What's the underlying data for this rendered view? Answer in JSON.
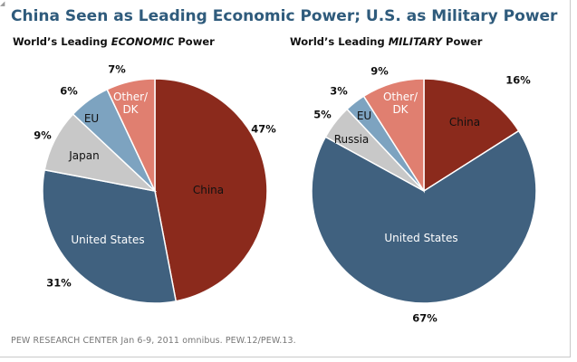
{
  "title": "China Seen as Leading Economic Power; U.S. as Military Power",
  "source": "PEW RESEARCH CENTER Jan 6-9, 2011 omnibus. PEW.12/PEW.13.",
  "chart_data": [
    {
      "type": "pie",
      "title_prefix": "World’s Leading ",
      "title_emph": "ECONOMIC",
      "title_suffix": " Power",
      "slices": [
        {
          "label": "China",
          "value": 47,
          "value_label": "47%",
          "color": "#8b2a1c",
          "label_color": "#111111"
        },
        {
          "label": "United States",
          "value": 31,
          "value_label": "31%",
          "color": "#40617f",
          "label_color": "#ffffff"
        },
        {
          "label": "Japan",
          "value": 9,
          "value_label": "9%",
          "color": "#c8c8c8",
          "label_color": "#111111"
        },
        {
          "label": "EU",
          "value": 6,
          "value_label": "6%",
          "color": "#7da3c0",
          "label_color": "#111111"
        },
        {
          "label": "Other/ DK",
          "value": 7,
          "value_label": "7%",
          "color": "#e07f70",
          "label_color": "#ffffff"
        }
      ]
    },
    {
      "type": "pie",
      "title_prefix": "World’s Leading ",
      "title_emph": "MILITARY",
      "title_suffix": " Power",
      "slices": [
        {
          "label": "China",
          "value": 16,
          "value_label": "16%",
          "color": "#8b2a1c",
          "label_color": "#111111"
        },
        {
          "label": "United States",
          "value": 67,
          "value_label": "67%",
          "color": "#40617f",
          "label_color": "#ffffff"
        },
        {
          "label": "Russia",
          "value": 5,
          "value_label": "5%",
          "color": "#c8c8c8",
          "label_color": "#111111"
        },
        {
          "label": "EU",
          "value": 3,
          "value_label": "3%",
          "color": "#7da3c0",
          "label_color": "#111111"
        },
        {
          "label": "Other/ DK",
          "value": 9,
          "value_label": "9%",
          "color": "#e07f70",
          "label_color": "#ffffff"
        }
      ]
    }
  ]
}
